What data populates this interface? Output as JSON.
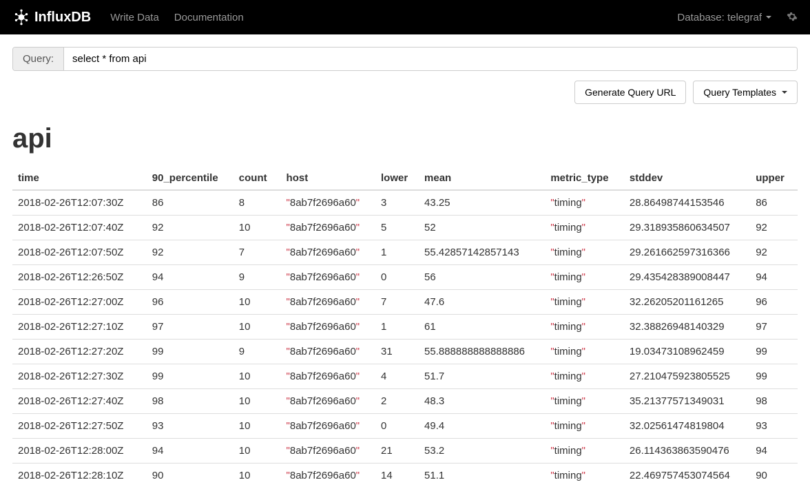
{
  "navbar": {
    "brand": "InfluxDB",
    "links": {
      "write_data": "Write Data",
      "documentation": "Documentation"
    },
    "database_label": "Database: telegraf"
  },
  "query": {
    "label": "Query:",
    "value": "select * from api"
  },
  "buttons": {
    "generate_url": "Generate Query URL",
    "query_templates": "Query Templates"
  },
  "result": {
    "title": "api",
    "columns": {
      "time": "time",
      "p90": "90_percentile",
      "count": "count",
      "host": "host",
      "lower": "lower",
      "mean": "mean",
      "metric_type": "metric_type",
      "stddev": "stddev",
      "upper": "upper"
    },
    "host_value": "8ab7f2696a60",
    "metric_value": "timing",
    "rows": [
      {
        "time": "2018-02-26T12:07:30Z",
        "p90": "86",
        "count": "8",
        "lower": "3",
        "mean": "43.25",
        "stddev": "28.86498744153546",
        "upper": "86"
      },
      {
        "time": "2018-02-26T12:07:40Z",
        "p90": "92",
        "count": "10",
        "lower": "5",
        "mean": "52",
        "stddev": "29.318935860634507",
        "upper": "92"
      },
      {
        "time": "2018-02-26T12:07:50Z",
        "p90": "92",
        "count": "7",
        "lower": "1",
        "mean": "55.42857142857143",
        "stddev": "29.261662597316366",
        "upper": "92"
      },
      {
        "time": "2018-02-26T12:26:50Z",
        "p90": "94",
        "count": "9",
        "lower": "0",
        "mean": "56",
        "stddev": "29.435428389008447",
        "upper": "94"
      },
      {
        "time": "2018-02-26T12:27:00Z",
        "p90": "96",
        "count": "10",
        "lower": "7",
        "mean": "47.6",
        "stddev": "32.26205201161265",
        "upper": "96"
      },
      {
        "time": "2018-02-26T12:27:10Z",
        "p90": "97",
        "count": "10",
        "lower": "1",
        "mean": "61",
        "stddev": "32.38826948140329",
        "upper": "97"
      },
      {
        "time": "2018-02-26T12:27:20Z",
        "p90": "99",
        "count": "9",
        "lower": "31",
        "mean": "55.888888888888886",
        "stddev": "19.03473108962459",
        "upper": "99"
      },
      {
        "time": "2018-02-26T12:27:30Z",
        "p90": "99",
        "count": "10",
        "lower": "4",
        "mean": "51.7",
        "stddev": "27.210475923805525",
        "upper": "99"
      },
      {
        "time": "2018-02-26T12:27:40Z",
        "p90": "98",
        "count": "10",
        "lower": "2",
        "mean": "48.3",
        "stddev": "35.21377571349031",
        "upper": "98"
      },
      {
        "time": "2018-02-26T12:27:50Z",
        "p90": "93",
        "count": "10",
        "lower": "0",
        "mean": "49.4",
        "stddev": "32.02561474819804",
        "upper": "93"
      },
      {
        "time": "2018-02-26T12:28:00Z",
        "p90": "94",
        "count": "10",
        "lower": "21",
        "mean": "53.2",
        "stddev": "26.114363863590476",
        "upper": "94"
      },
      {
        "time": "2018-02-26T12:28:10Z",
        "p90": "90",
        "count": "10",
        "lower": "14",
        "mean": "51.1",
        "stddev": "22.469757453074564",
        "upper": "90"
      }
    ]
  },
  "colors": {
    "navbar_bg": "#000000",
    "quote": "#cc3344",
    "border": "#dddddd",
    "text": "#333333"
  }
}
